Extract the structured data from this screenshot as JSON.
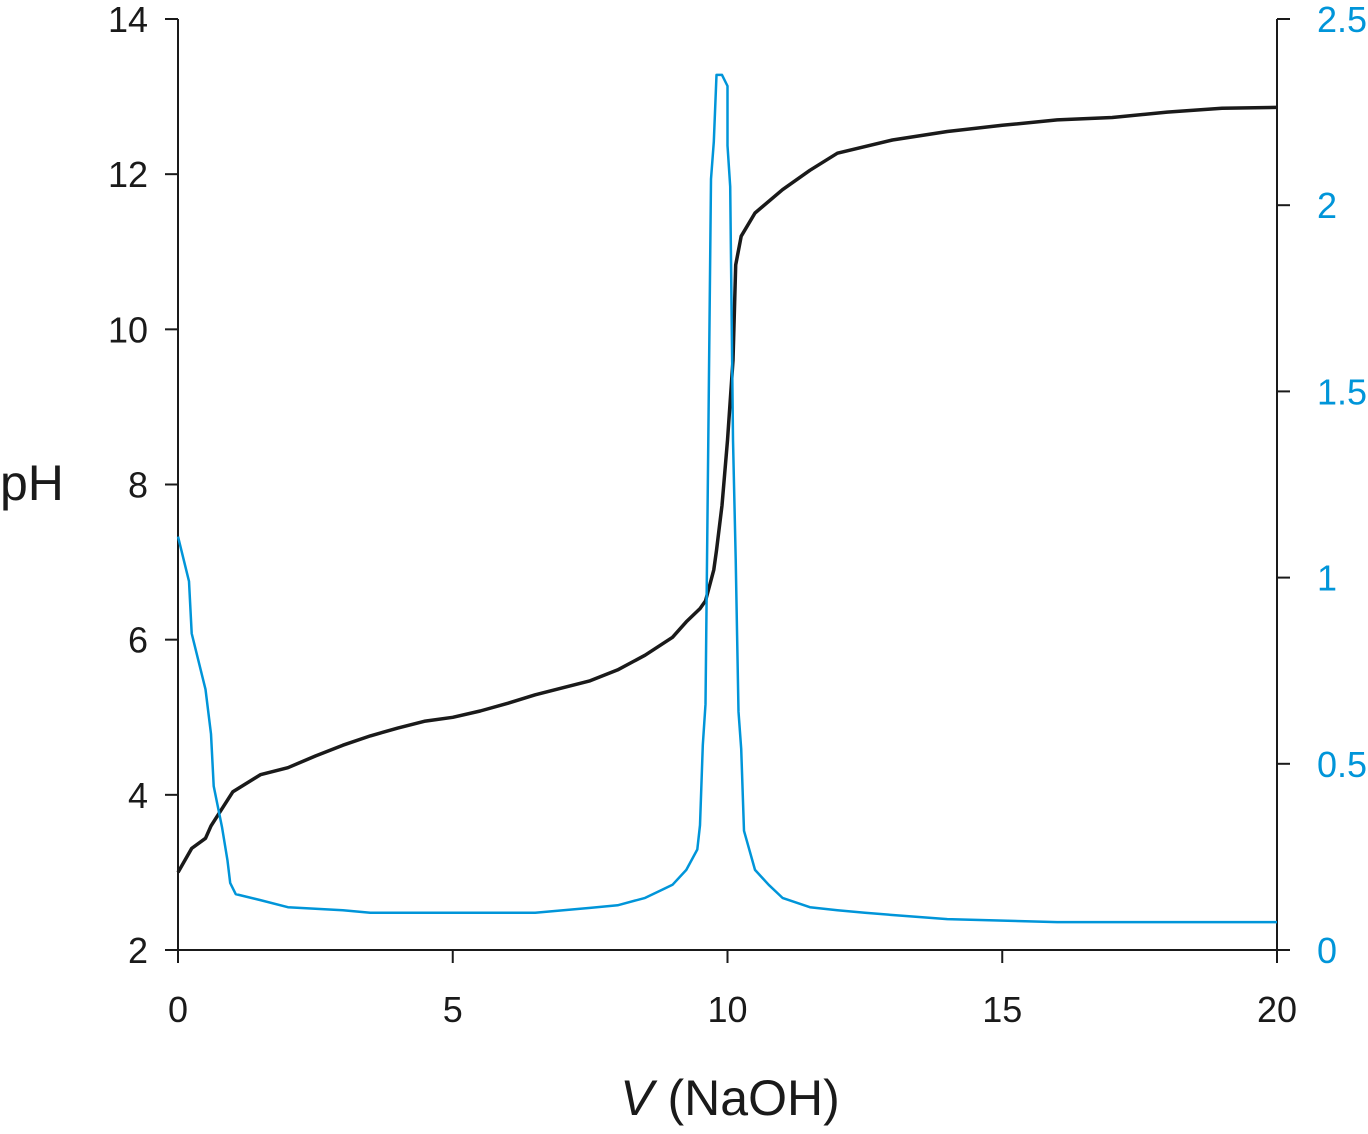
{
  "chart_data": {
    "type": "line",
    "title": "",
    "xlabel_italic": "V",
    "xlabel_rest": " (NaOH)",
    "ylabel": "pH",
    "ylabel_right": "",
    "xlim": [
      0,
      20
    ],
    "ylim": [
      2,
      14
    ],
    "ylim_right": [
      0,
      2.5
    ],
    "xticks": [
      0,
      5,
      10,
      15,
      20
    ],
    "yticks": [
      2,
      4,
      6,
      8,
      10,
      12,
      14
    ],
    "yticks_right": [
      0,
      0.5,
      1,
      1.5,
      2,
      2.5
    ],
    "grid": false,
    "colors": {
      "ph": "#1a1a1a",
      "derivative": "#0095d9",
      "axis": "#1a1a1a"
    },
    "series": [
      {
        "axis": "left",
        "color": "#1a1a1a",
        "x": [
          0,
          0.25,
          0.5,
          0.6,
          1,
          1.5,
          2,
          2.5,
          3,
          3.5,
          4,
          4.5,
          5,
          5.5,
          6,
          6.5,
          7,
          7.5,
          8,
          8.5,
          9,
          9.25,
          9.5,
          9.6,
          9.75,
          9.8,
          9.9,
          10,
          10.1,
          10.15,
          10.25,
          10.5,
          11,
          11.5,
          12,
          13,
          14,
          15,
          16,
          17,
          18,
          19,
          20
        ],
        "y": [
          3.0,
          3.31,
          3.44,
          3.6,
          4.04,
          4.26,
          4.35,
          4.5,
          4.64,
          4.76,
          4.86,
          4.95,
          5.0,
          5.08,
          5.18,
          5.29,
          5.38,
          5.47,
          5.61,
          5.8,
          6.03,
          6.23,
          6.4,
          6.5,
          6.9,
          7.15,
          7.73,
          8.57,
          9.6,
          10.83,
          11.2,
          11.5,
          11.8,
          12.05,
          12.27,
          12.44,
          12.55,
          12.63,
          12.7,
          12.73,
          12.8,
          12.85,
          12.86
        ]
      },
      {
        "axis": "right",
        "color": "#0095d9",
        "x": [
          0,
          0.2,
          0.25,
          0.5,
          0.6,
          0.65,
          0.8,
          0.9,
          0.95,
          1.05,
          1.5,
          2,
          3,
          3.5,
          6.5,
          7.5,
          8,
          8.5,
          9,
          9.25,
          9.45,
          9.5,
          9.55,
          9.6,
          9.65,
          9.7,
          9.75,
          9.8,
          9.9,
          10,
          10,
          10.05,
          10.1,
          10.15,
          10.2,
          10.25,
          10.3,
          10.5,
          10.75,
          11,
          11.5,
          12,
          12.5,
          13,
          14,
          16,
          20
        ],
        "y": [
          1.11,
          0.99,
          0.85,
          0.7,
          0.58,
          0.44,
          0.33,
          0.24,
          0.18,
          0.15,
          0.134,
          0.115,
          0.107,
          0.1,
          0.1,
          0.113,
          0.12,
          0.14,
          0.175,
          0.215,
          0.27,
          0.335,
          0.55,
          0.66,
          1.37,
          2.07,
          2.17,
          2.35,
          2.35,
          2.32,
          2.16,
          2.05,
          1.37,
          1.05,
          0.64,
          0.54,
          0.32,
          0.215,
          0.175,
          0.14,
          0.115,
          0.107,
          0.1,
          0.094,
          0.083,
          0.075,
          0.075
        ]
      }
    ]
  }
}
